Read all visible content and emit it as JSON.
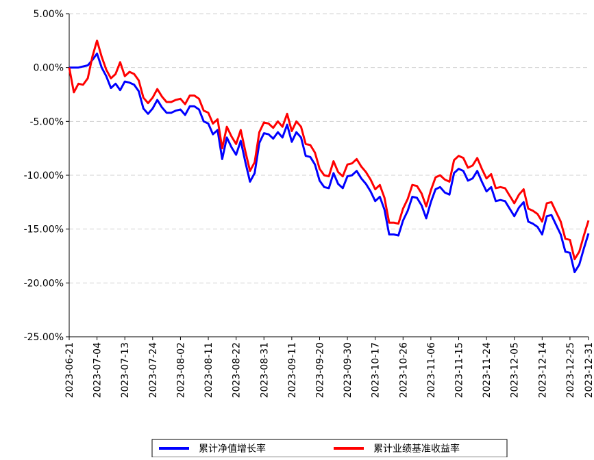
{
  "chart_data": {
    "type": "line",
    "categories": [
      "2023-06-21",
      null,
      null,
      null,
      null,
      null,
      "2023-07-04",
      null,
      null,
      null,
      null,
      null,
      "2023-07-13",
      null,
      null,
      null,
      null,
      null,
      "2023-07-24",
      null,
      null,
      null,
      null,
      null,
      "2023-08-02",
      null,
      null,
      null,
      null,
      null,
      "2023-08-11",
      null,
      null,
      null,
      null,
      null,
      "2023-08-22",
      null,
      null,
      null,
      null,
      null,
      "2023-08-31",
      null,
      null,
      null,
      null,
      null,
      "2023-09-11",
      null,
      null,
      null,
      null,
      null,
      "2023-09-20",
      null,
      null,
      null,
      null,
      null,
      "2023-09-30",
      null,
      null,
      null,
      null,
      null,
      "2023-10-17",
      null,
      null,
      null,
      null,
      null,
      "2023-10-26",
      null,
      null,
      null,
      null,
      null,
      "2023-11-06",
      null,
      null,
      null,
      null,
      null,
      "2023-11-15",
      null,
      null,
      null,
      null,
      null,
      "2023-11-24",
      null,
      null,
      null,
      null,
      null,
      "2023-12-05",
      null,
      null,
      null,
      null,
      null,
      "2023-12-14",
      null,
      null,
      null,
      null,
      null,
      "2023-12-25",
      null,
      null,
      null,
      "2023-12-31"
    ],
    "series": [
      {
        "name": "累计净值增长率",
        "color": "#0000ff",
        "values": [
          0,
          0,
          0,
          0.1,
          0.2,
          0.7,
          1.3,
          0,
          -0.8,
          -1.9,
          -1.5,
          -2.1,
          -1.3,
          -1.4,
          -1.6,
          -2.2,
          -3.8,
          -4.3,
          -3.8,
          -3.0,
          -3.7,
          -4.2,
          -4.2,
          -4.0,
          -3.9,
          -4.4,
          -3.6,
          -3.6,
          -3.9,
          -5.0,
          -5.2,
          -6.2,
          -5.8,
          -8.5,
          -6.5,
          -7.4,
          -8.1,
          -6.8,
          -8.8,
          -10.6,
          -9.8,
          -7.0,
          -6.1,
          -6.2,
          -6.6,
          -6.0,
          -6.5,
          -5.3,
          -6.9,
          -6.0,
          -6.5,
          -8.2,
          -8.3,
          -9.0,
          -10.5,
          -11.1,
          -11.2,
          -9.8,
          -10.8,
          -11.2,
          -10.1,
          -10.0,
          -9.6,
          -10.3,
          -10.8,
          -11.5,
          -12.4,
          -12.0,
          -13.2,
          -15.5,
          -15.5,
          -15.6,
          -14.2,
          -13.3,
          -12.0,
          -12.1,
          -12.8,
          -14.0,
          -12.5,
          -11.3,
          -11.1,
          -11.6,
          -11.8,
          -9.8,
          -9.4,
          -9.6,
          -10.5,
          -10.3,
          -9.6,
          -10.6,
          -11.5,
          -11.1,
          -12.4,
          -12.3,
          -12.4,
          -13.1,
          -13.8,
          -13.0,
          -12.5,
          -14.3,
          -14.5,
          -14.8,
          -15.5,
          -13.8,
          -13.7,
          -14.6,
          -15.5,
          -17.1,
          -17.2,
          -19.0,
          -18.3,
          -16.8,
          -15.4
        ]
      },
      {
        "name": "累计业绩基准收益率",
        "color": "#ff0000",
        "values": [
          0,
          -2.3,
          -1.5,
          -1.6,
          -1.0,
          1.0,
          2.5,
          1.0,
          -0.2,
          -1.0,
          -0.6,
          0.5,
          -0.8,
          -0.4,
          -0.6,
          -1.2,
          -2.8,
          -3.3,
          -2.8,
          -2.0,
          -2.7,
          -3.2,
          -3.2,
          -3.0,
          -2.9,
          -3.4,
          -2.6,
          -2.6,
          -2.9,
          -4.0,
          -4.2,
          -5.2,
          -4.8,
          -7.5,
          -5.5,
          -6.4,
          -7.1,
          -5.8,
          -7.8,
          -9.6,
          -8.8,
          -6.0,
          -5.1,
          -5.2,
          -5.6,
          -5.0,
          -5.5,
          -4.3,
          -5.9,
          -5.0,
          -5.5,
          -7.1,
          -7.2,
          -7.9,
          -9.4,
          -10.0,
          -10.1,
          -8.7,
          -9.7,
          -10.1,
          -9.0,
          -8.9,
          -8.5,
          -9.2,
          -9.7,
          -10.4,
          -11.3,
          -10.9,
          -12.1,
          -14.4,
          -14.4,
          -14.5,
          -13.1,
          -12.2,
          -10.9,
          -11.0,
          -11.7,
          -12.9,
          -11.4,
          -10.2,
          -10.0,
          -10.4,
          -10.6,
          -8.6,
          -8.2,
          -8.4,
          -9.3,
          -9.1,
          -8.4,
          -9.4,
          -10.3,
          -9.9,
          -11.2,
          -11.1,
          -11.2,
          -11.9,
          -12.6,
          -11.8,
          -11.3,
          -13.1,
          -13.3,
          -13.6,
          -14.3,
          -12.6,
          -12.5,
          -13.4,
          -14.3,
          -15.9,
          -16.0,
          -17.8,
          -17.1,
          -15.6,
          -14.2
        ]
      }
    ],
    "ylim": [
      -25,
      5
    ],
    "yticks": [
      {
        "value": -25,
        "label": "-25.00%"
      },
      {
        "value": -20,
        "label": "-20.00%"
      },
      {
        "value": -15,
        "label": "-15.00%"
      },
      {
        "value": -10,
        "label": "-10.00%"
      },
      {
        "value": -5,
        "label": "-5.00%"
      },
      {
        "value": 0,
        "label": "0.00%"
      },
      {
        "value": 5,
        "label": "5.00%"
      }
    ],
    "grid": true,
    "legend": "bottom"
  }
}
